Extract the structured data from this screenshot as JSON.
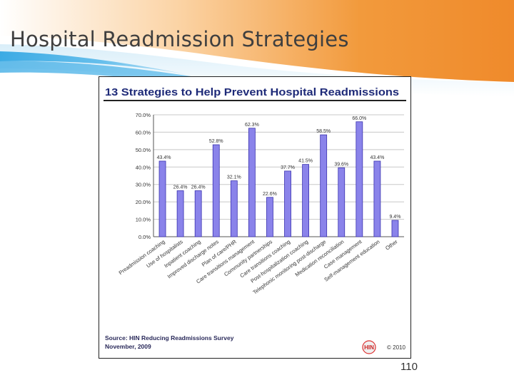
{
  "slide": {
    "title": "Hospital Readmission Strategies",
    "page_number": "110"
  },
  "colors": {
    "bar_fill": "#8a83ea",
    "bar_stroke": "#3a32b0",
    "chart_title": "#1e2a78",
    "grid": "#c8c8c8",
    "banner_orange": "#f29a3c",
    "banner_blue": "#1f97dc"
  },
  "chart_data": {
    "type": "bar",
    "title": "13 Strategies to Help Prevent Hospital Readmissions",
    "categories": [
      "Preadmission coaching",
      "Use of hospitalists",
      "Inpatient coaching",
      "Improved discharge notes",
      "Plan of care/PHR",
      "Care transitions management",
      "Community partnerships",
      "Care transitions coaching",
      "Post-hospitalization coaching",
      "Telephonic monitoring post-discharge",
      "Medication reconciliation",
      "Case management",
      "Self-management education",
      "Other"
    ],
    "values": [
      43.4,
      26.4,
      26.4,
      52.8,
      32.1,
      62.3,
      22.6,
      37.7,
      41.5,
      58.5,
      39.6,
      66.0,
      43.4,
      9.4
    ],
    "value_labels": [
      "43.4%",
      "26.4%",
      "26.4%",
      "52.8%",
      "32.1%",
      "62.3%",
      "22.6%",
      "37.7%",
      "41.5%",
      "58.5%",
      "39.6%",
      "66.0%",
      "43.4%",
      "9.4%"
    ],
    "yticks": [
      "0.0%",
      "10.0%",
      "20.0%",
      "30.0%",
      "40.0%",
      "50.0%",
      "60.0%",
      "70.0%"
    ],
    "ylim": [
      0,
      70
    ],
    "grid": true,
    "xlabel": "",
    "ylabel": "",
    "source": "Source: HIN Reducing Readmissions Survey\nNovember, 2009",
    "logo_text": "HIN",
    "copyright": "© 2010"
  }
}
